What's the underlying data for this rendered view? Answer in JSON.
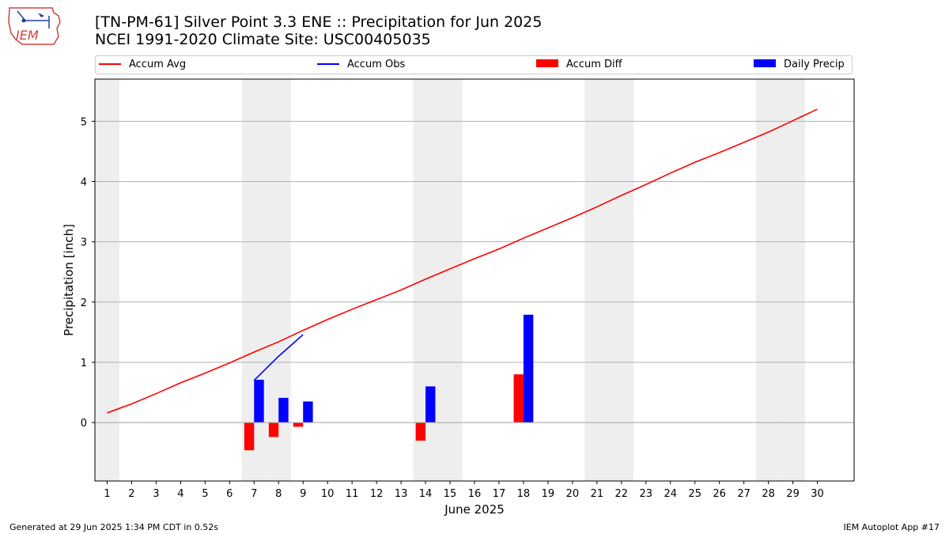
{
  "header": {
    "title_line1": "[TN-PM-61] Silver Point 3.3 ENE :: Precipitation for Jun 2025",
    "title_line2": "NCEI 1991-2020 Climate Site: USC00405035"
  },
  "logo": {
    "text": "IEM"
  },
  "footer": {
    "generated": "Generated at 29 Jun 2025 1:34 PM CDT in 0.52s",
    "app": "IEM Autoplot App #17"
  },
  "colors": {
    "avg": "#ff0000",
    "obs": "#0000ff",
    "diff": "#ff0000",
    "daily": "#0000ff",
    "weekend": "#eeeeee",
    "grid": "#b0b0b0"
  },
  "chart_data": {
    "type": "bar",
    "xlabel": "June 2025",
    "ylabel": "Precipitation [inch]",
    "xlim": [
      0.5,
      31.5
    ],
    "ylim": [
      -0.97,
      5.7
    ],
    "yticks": [
      0,
      1,
      2,
      3,
      4,
      5
    ],
    "x": [
      1,
      2,
      3,
      4,
      5,
      6,
      7,
      8,
      9,
      10,
      11,
      12,
      13,
      14,
      15,
      16,
      17,
      18,
      19,
      20,
      21,
      22,
      23,
      24,
      25,
      26,
      27,
      28,
      29,
      30
    ],
    "weekend_days": [
      1,
      7,
      8,
      14,
      15,
      21,
      22,
      28,
      29
    ],
    "grid": "horizontal",
    "legend": {
      "placement": "top",
      "entries": [
        {
          "label": "Accum Avg",
          "kind": "line",
          "color": "#ff0000"
        },
        {
          "label": "Accum Obs",
          "kind": "line",
          "color": "#0000ff"
        },
        {
          "label": "Accum Diff",
          "kind": "patch",
          "color": "#ff0000"
        },
        {
          "label": "Daily Precip",
          "kind": "patch",
          "color": "#0000ff"
        }
      ]
    },
    "series": [
      {
        "name": "Accum Avg",
        "type": "line",
        "values": [
          0.16,
          0.31,
          0.48,
          0.66,
          0.82,
          0.99,
          1.17,
          1.34,
          1.53,
          1.71,
          1.88,
          2.04,
          2.2,
          2.38,
          2.55,
          2.72,
          2.88,
          3.06,
          3.23,
          3.4,
          3.58,
          3.77,
          3.95,
          4.14,
          4.32,
          4.48,
          4.65,
          4.82,
          5.01,
          5.2
        ]
      },
      {
        "name": "Accum Obs",
        "type": "line",
        "x": [
          7,
          8,
          9
        ],
        "values": [
          0.7,
          1.1,
          1.46
        ]
      },
      {
        "name": "Accum Diff",
        "type": "bar",
        "x": [
          7,
          8,
          9,
          14,
          18
        ],
        "values": [
          -0.46,
          -0.24,
          -0.07,
          -0.3,
          0.8
        ]
      },
      {
        "name": "Daily Precip",
        "type": "bar",
        "x": [
          7,
          8,
          9,
          14,
          18
        ],
        "values": [
          0.71,
          0.41,
          0.35,
          0.6,
          1.79
        ]
      }
    ]
  }
}
